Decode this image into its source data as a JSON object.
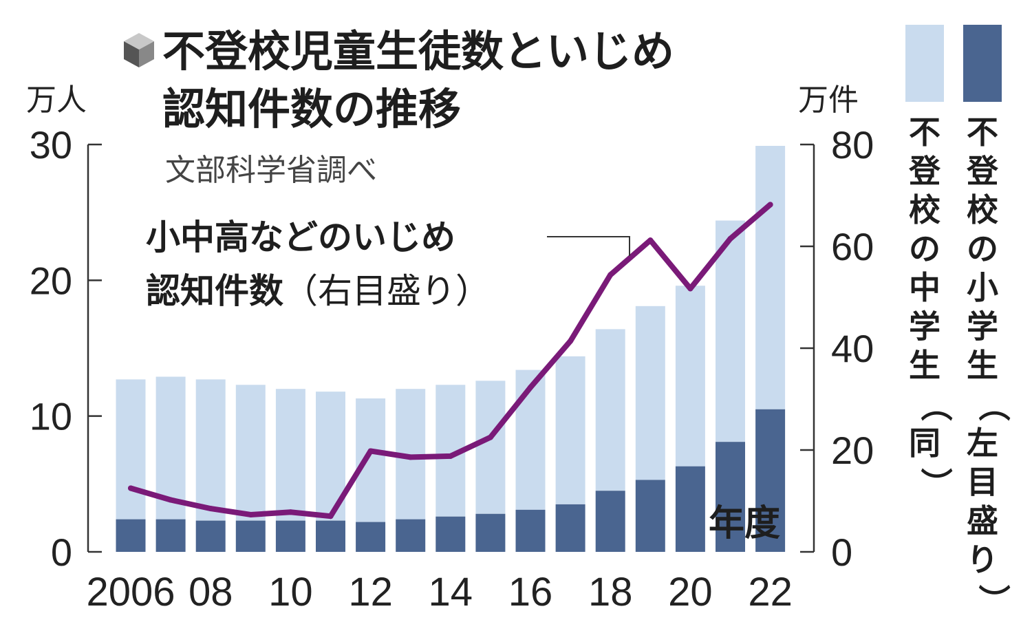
{
  "chart_data": {
    "type": "bar+line",
    "title_line1": "不登校児童生徒数といじめ",
    "title_line2": "認知件数の推移",
    "source": "文部科学省調べ",
    "x": [
      2006,
      2007,
      2008,
      2009,
      2010,
      2011,
      2012,
      2013,
      2014,
      2015,
      2016,
      2017,
      2018,
      2019,
      2020,
      2021,
      2022
    ],
    "x_tick_labels": [
      {
        "year": 2006,
        "label": "2006"
      },
      {
        "year": 2008,
        "label": "08"
      },
      {
        "year": 2010,
        "label": "10"
      },
      {
        "year": 2012,
        "label": "12"
      },
      {
        "year": 2014,
        "label": "14"
      },
      {
        "year": 2016,
        "label": "16"
      },
      {
        "year": 2018,
        "label": "18"
      },
      {
        "year": 2020,
        "label": "20"
      },
      {
        "year": 2022,
        "label": "22"
      }
    ],
    "x_axis_label": "年度",
    "left_axis": {
      "unit": "万人",
      "range": [
        0,
        30
      ],
      "ticks": [
        0,
        10,
        20,
        30
      ]
    },
    "right_axis": {
      "unit": "万件",
      "range": [
        0,
        80
      ],
      "ticks": [
        0,
        20,
        40,
        60,
        80
      ]
    },
    "series": [
      {
        "name": "不登校の小学生（左目盛り）",
        "kind": "stacked-bar-bottom",
        "axis": "left",
        "color": "#4a6590",
        "values": [
          2.4,
          2.4,
          2.3,
          2.3,
          2.3,
          2.3,
          2.2,
          2.4,
          2.6,
          2.8,
          3.1,
          3.5,
          4.5,
          5.3,
          6.3,
          8.1,
          10.5
        ]
      },
      {
        "name": "不登校の中学生（同）",
        "kind": "stacked-bar-top",
        "axis": "left",
        "color": "#c9dbee",
        "values": [
          10.3,
          10.5,
          10.4,
          10.0,
          9.7,
          9.5,
          9.1,
          9.6,
          9.7,
          9.8,
          10.3,
          10.9,
          11.9,
          12.8,
          13.3,
          16.3,
          19.4
        ]
      },
      {
        "name": "小中高などのいじめ認知件数（右目盛り）",
        "kind": "line",
        "axis": "right",
        "color": "#7a1a78",
        "values": [
          12.5,
          10.2,
          8.5,
          7.3,
          7.8,
          7.0,
          19.8,
          18.6,
          18.8,
          22.5,
          32.3,
          41.4,
          54.4,
          61.2,
          51.7,
          61.5,
          68.2
        ]
      }
    ],
    "line_annotation_line1": "小中高などのいじめ",
    "line_annotation_line2_bold": "認知件数",
    "line_annotation_line2_light": "（右目盛り）",
    "legend": [
      {
        "text": "不登校の小学生",
        "paren": "（左目盛り）",
        "color": "#4a6590"
      },
      {
        "text": "不登校の中学生",
        "paren": "（同）",
        "color": "#c9dbee"
      }
    ]
  }
}
